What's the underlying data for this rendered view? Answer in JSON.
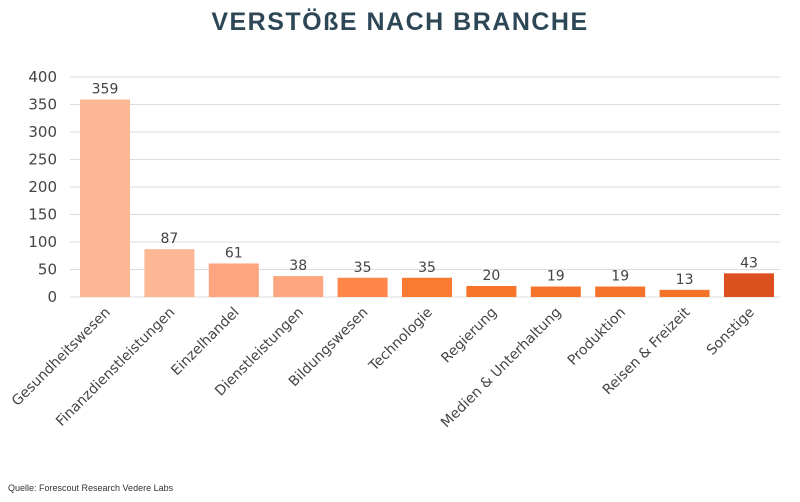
{
  "chart_data": {
    "type": "bar",
    "title": "VERSTÖßE NACH BRANCHE",
    "categories": [
      "Gesundheitswesen",
      "Finanzdienstleistungen",
      "Einzelhandel",
      "Dienstleistungen",
      "Bildungswesen",
      "Technologie",
      "Regierung",
      "Medien & Unterhaltung",
      "Produktion",
      "Reisen & Freizeit",
      "Sonstige"
    ],
    "values": [
      359,
      87,
      61,
      38,
      35,
      35,
      20,
      19,
      19,
      13,
      43
    ],
    "colors": [
      "#fdb795",
      "#fdb795",
      "#fca57e",
      "#fca57e",
      "#fd8648",
      "#fb7a32",
      "#f87428",
      "#f5722a",
      "#f5722a",
      "#f5722a",
      "#dc4f1f"
    ],
    "ylim": [
      0,
      400
    ],
    "yticks": [
      0,
      50,
      100,
      150,
      200,
      250,
      300,
      350,
      400
    ],
    "grid": true,
    "xlabel": "",
    "ylabel": ""
  },
  "source": "Quelle: Forescout Research Vedere Labs"
}
